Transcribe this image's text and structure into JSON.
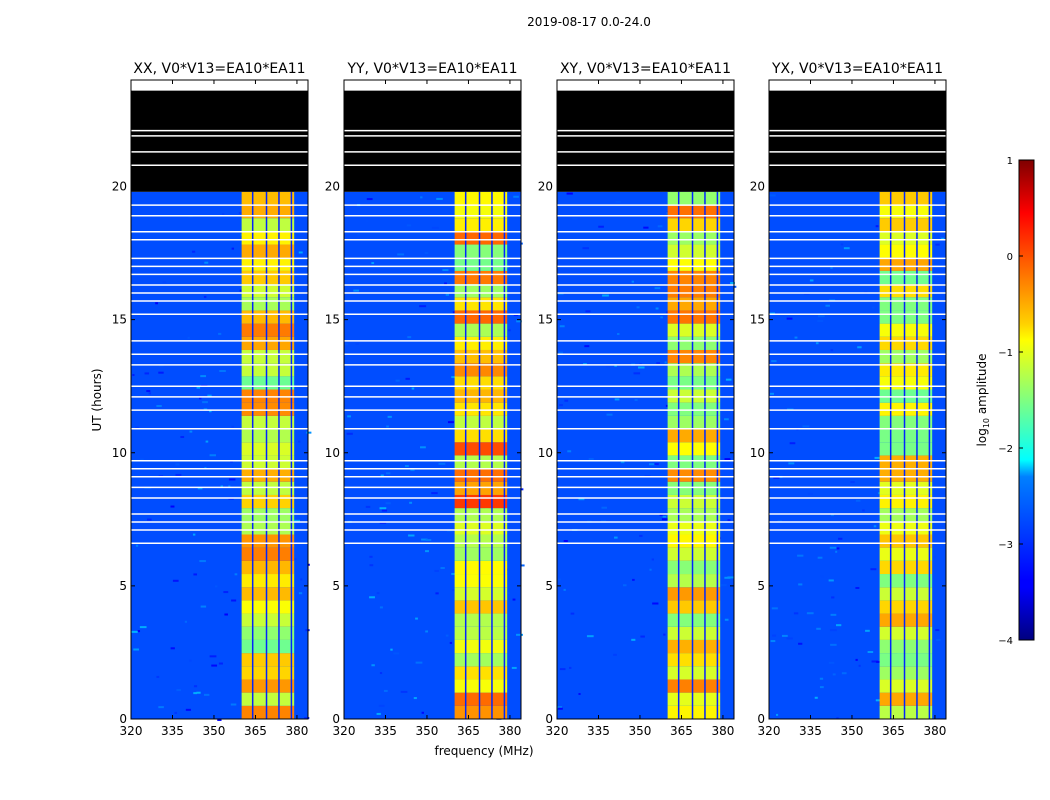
{
  "chart_data": {
    "type": "heatmap",
    "suptitle": "2019-08-17 0.0-24.0",
    "xlabel": "frequency (MHz)",
    "ylabel": "UT (hours)",
    "xlim": [
      320,
      384
    ],
    "ylim": [
      0,
      24
    ],
    "xticks": [
      320,
      335,
      350,
      365,
      380
    ],
    "yticks": [
      0,
      5,
      10,
      15,
      20
    ],
    "panels": [
      {
        "title": "XX, V0*V13=EA10*EA11",
        "band_peak": 0.2
      },
      {
        "title": "YY, V0*V13=EA10*EA11",
        "band_peak": 0.5
      },
      {
        "title": "XY, V0*V13=EA10*EA11",
        "band_peak": 0.25
      },
      {
        "title": "YX, V0*V13=EA10*EA11",
        "band_peak": 0.0
      }
    ],
    "bright_band_mhz": [
      360,
      379
    ],
    "band_gaps_mhz": [
      364,
      369,
      373.5,
      378
    ],
    "no_data_from_hours": 19.8,
    "flag_rows_hours": [
      6.6,
      7.1,
      7.4,
      7.7,
      8.3,
      8.7,
      9.1,
      9.4,
      9.7,
      10.9,
      11.6,
      12.1,
      12.5,
      13.3,
      13.7,
      14.2,
      15.2,
      15.7,
      16.0,
      16.3,
      16.7,
      17.0,
      17.3,
      18.0,
      18.3,
      18.9,
      19.3,
      20.8,
      21.3,
      21.9,
      22.1
    ],
    "colorbar": {
      "label": "log10 amplitude",
      "label_prefix": "log",
      "label_sub": "10",
      "label_suffix": " amplitude",
      "range": [
        -4,
        1
      ],
      "ticks": [
        "1",
        "0",
        "−1",
        "−2",
        "−3",
        "−4"
      ],
      "tick_values": [
        1,
        0,
        -1,
        -2,
        -3,
        -4
      ]
    }
  }
}
